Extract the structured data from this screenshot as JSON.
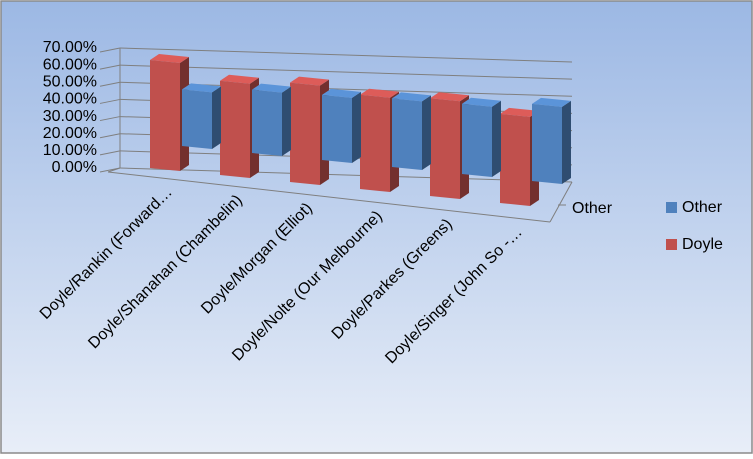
{
  "chart_data": {
    "type": "bar3d",
    "categories": [
      "Doyle/Rankin (Forward…",
      "Doyle/Shanahan (Chambelin)",
      "Doyle/Morgan (Elliot)",
      "Doyle/Nolte (Our Melbourne)",
      "Doyle/Parkes (Greens)",
      "Doyle/Singer (John So -…"
    ],
    "series": [
      {
        "name": "Other",
        "color": "#4f81bd",
        "values": [
          33,
          37,
          38,
          40,
          41,
          45
        ]
      },
      {
        "name": "Doyle",
        "color": "#c0504d",
        "values": [
          63,
          55,
          58,
          55,
          57,
          52
        ]
      }
    ],
    "depth_labels": [
      "Other"
    ],
    "ylim": [
      0,
      70
    ],
    "yticks": [
      {
        "value": 0,
        "label": "0.00%"
      },
      {
        "value": 10,
        "label": "10.00%"
      },
      {
        "value": 20,
        "label": "20.00%"
      },
      {
        "value": 30,
        "label": "30.00%"
      },
      {
        "value": 40,
        "label": "40.00%"
      },
      {
        "value": 50,
        "label": "50.00%"
      },
      {
        "value": 60,
        "label": "60.00%"
      },
      {
        "value": 70,
        "label": "70.00%"
      }
    ],
    "grid": true,
    "legend": "right"
  }
}
